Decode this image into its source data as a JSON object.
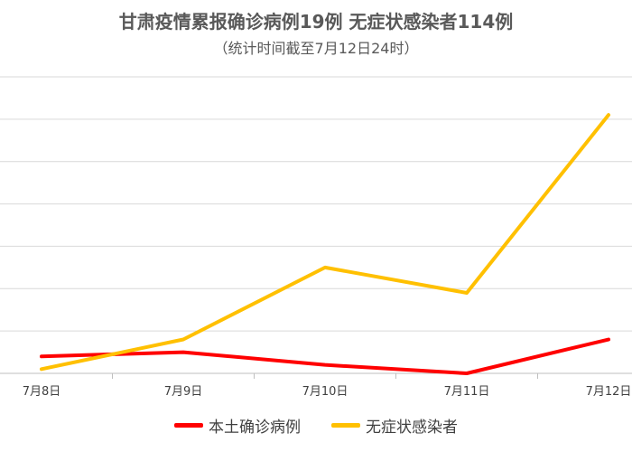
{
  "chart_data": {
    "type": "line",
    "title": "甘肃疫情累报确诊病例19例 无症状感染者114例",
    "subtitle": "（统计时间截至7月12日24时）",
    "categories": [
      "7月8日",
      "7月9日",
      "7月10日",
      "7月11日",
      "7月12日"
    ],
    "series": [
      {
        "name": "本土确诊病例",
        "color": "#FF0000",
        "values": [
          4,
          5,
          2,
          0,
          8
        ]
      },
      {
        "name": "无症状感染者",
        "color": "#FFC000",
        "values": [
          1,
          8,
          25,
          19,
          61
        ]
      }
    ],
    "ylim": [
      0,
      70
    ],
    "grid": true,
    "legend_position": "bottom"
  }
}
